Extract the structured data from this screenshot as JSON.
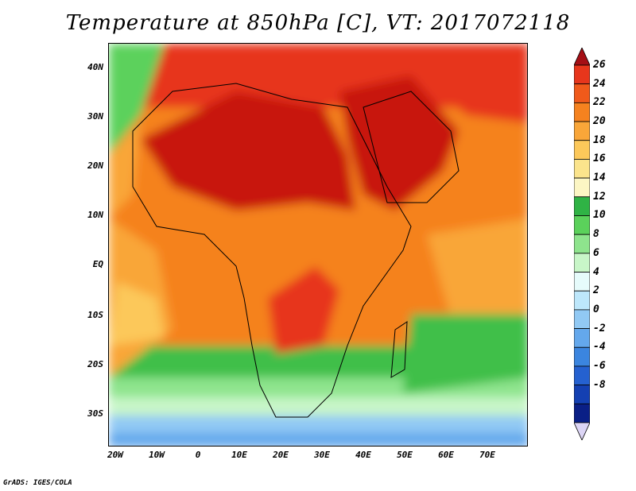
{
  "title": "Temperature at 850hPa [C], VT: 2017072118",
  "footer": "GrADS: IGES/COLA",
  "map": {
    "lat_labels": [
      "40N",
      "30N",
      "20N",
      "10N",
      "EQ",
      "10S",
      "20S",
      "30S"
    ],
    "lon_labels": [
      "20W",
      "10W",
      "0",
      "10E",
      "20E",
      "30E",
      "40E",
      "50E",
      "60E",
      "70E"
    ]
  },
  "colorbar": {
    "labels": [
      "26",
      "24",
      "22",
      "20",
      "18",
      "16",
      "14",
      "12",
      "10",
      "8",
      "6",
      "4",
      "2",
      "0",
      "-2",
      "-4",
      "-6",
      "-8"
    ],
    "colors": [
      "#a50f15",
      "#e7361c",
      "#f05a1b",
      "#f5821f",
      "#f9a639",
      "#fcc85a",
      "#fbe48c",
      "#fcf6c4",
      "#2fb345",
      "#5bd15b",
      "#8ee48d",
      "#c8f6c8",
      "#e6fbfb",
      "#bde7fb",
      "#91c9f4",
      "#64a8ec",
      "#3b85df",
      "#2561d0",
      "#1440b2",
      "#0a1f86",
      "#dcd5f5"
    ]
  }
}
